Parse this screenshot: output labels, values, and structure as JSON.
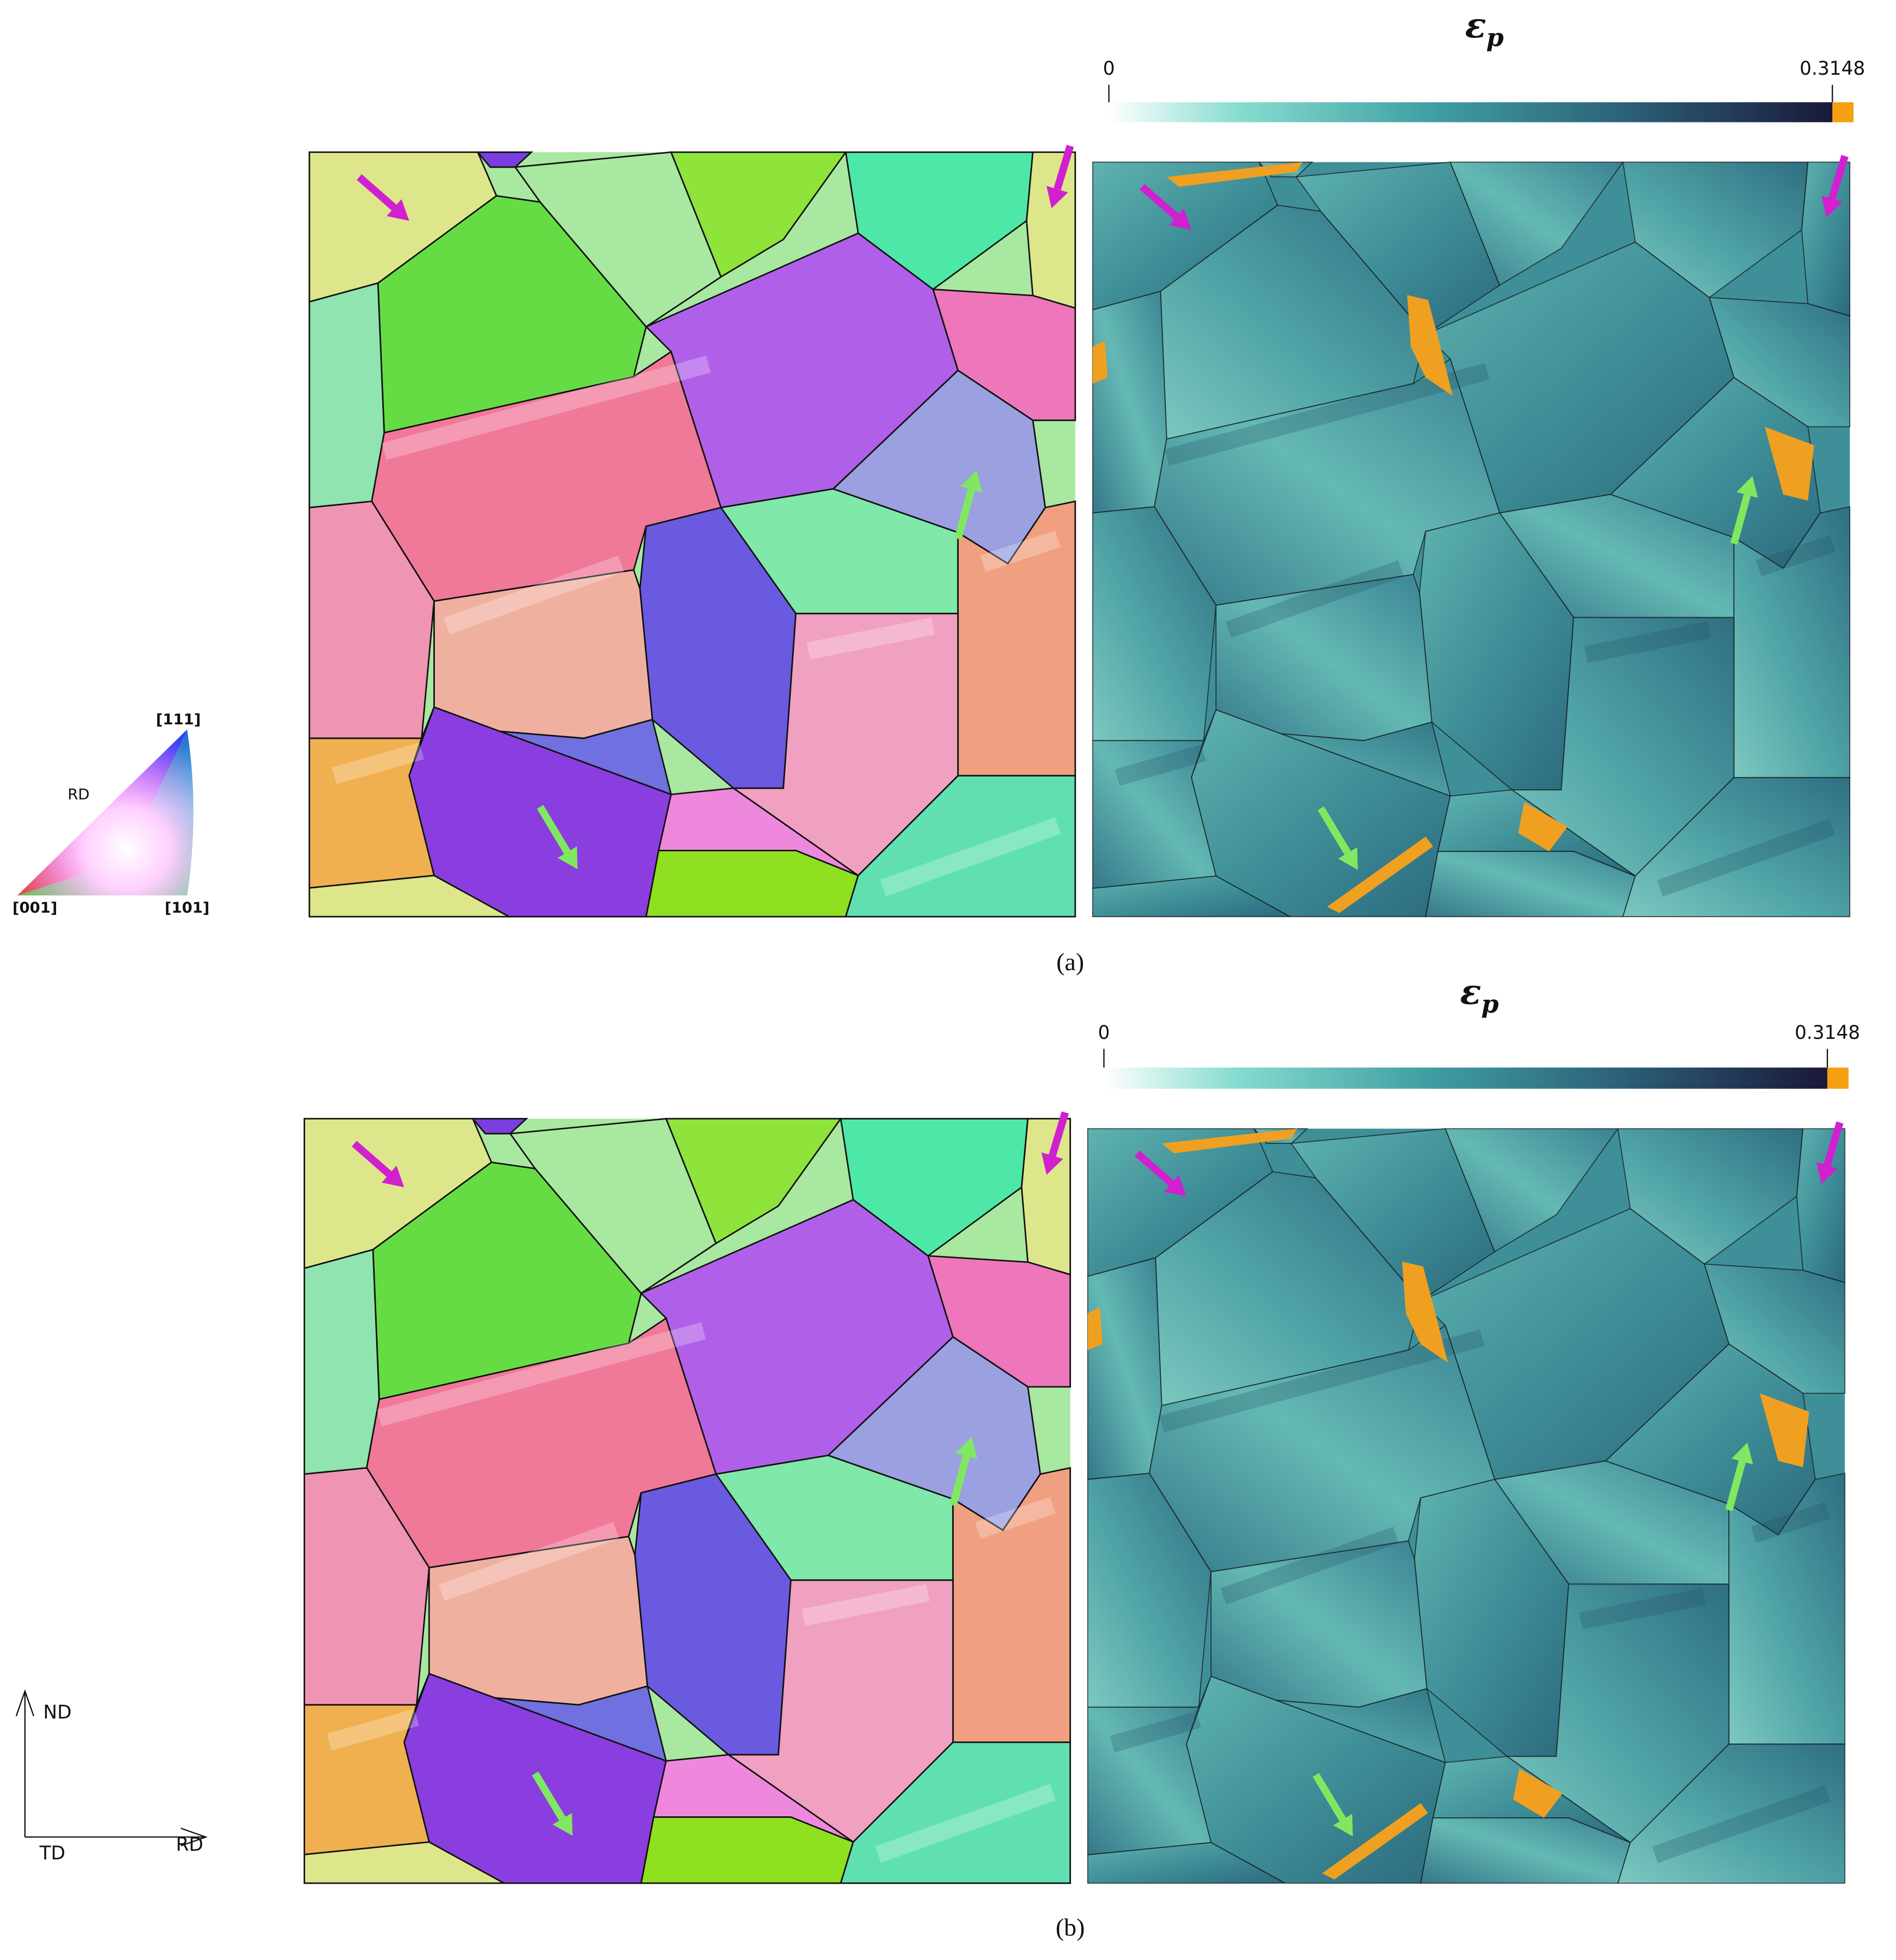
{
  "legend_triangle": {
    "top": "[111]",
    "direction": "RD",
    "left": "[001]",
    "right": "[101]"
  },
  "axes": {
    "vertical": "ND",
    "origin": "TD",
    "horizontal": "RD"
  },
  "panels": [
    {
      "label": "(a)",
      "colorbar": {
        "symbol": "ε",
        "subscript": "p",
        "min": 0,
        "max": 0.3148
      }
    },
    {
      "label": "(b)",
      "colorbar": {
        "symbol": "ε",
        "subscript": "p",
        "min": 0,
        "max": 0.3148
      }
    }
  ]
}
